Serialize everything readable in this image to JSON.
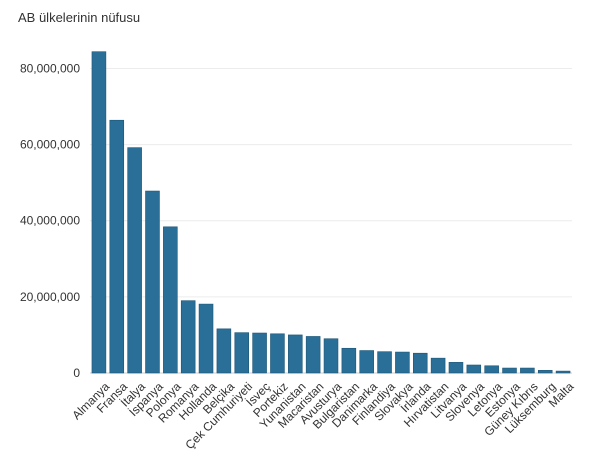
{
  "chart_data": {
    "type": "bar",
    "title": "AB ülkelerinin nüfusu",
    "xlabel": "",
    "ylabel": "",
    "ylim": [
      0,
      88000000
    ],
    "y_ticks": [
      0,
      20000000,
      40000000,
      60000000,
      80000000
    ],
    "y_tick_labels": [
      "0",
      "20,000,000",
      "40,000,000",
      "60,000,000",
      "80,000,000"
    ],
    "grid": true,
    "bar_color": "#2a6f97",
    "categories": [
      "Almanya",
      "Fransa",
      "İtalya",
      "İspanya",
      "Polonya",
      "Romanya",
      "Hollanda",
      "Belçika",
      "Çek Cumhuriyeti",
      "İsveç",
      "Portekiz",
      "Yunanistan",
      "Macaristan",
      "Avusturya",
      "Bulgaristan",
      "Danimarka",
      "Finlandiya",
      "Slovakya",
      "İrlanda",
      "Hırvatistan",
      "Litvanya",
      "Slovenya",
      "Letonya",
      "Estonya",
      "Güney Kıbrıs",
      "Lüksemburg",
      "Malta"
    ],
    "values": [
      84400000,
      66400000,
      59200000,
      47800000,
      38400000,
      19000000,
      18100000,
      11600000,
      10600000,
      10500000,
      10300000,
      10000000,
      9600000,
      9000000,
      6500000,
      5900000,
      5600000,
      5500000,
      5200000,
      3900000,
      2800000,
      2100000,
      1900000,
      1300000,
      1300000,
      700000,
      500000
    ]
  }
}
